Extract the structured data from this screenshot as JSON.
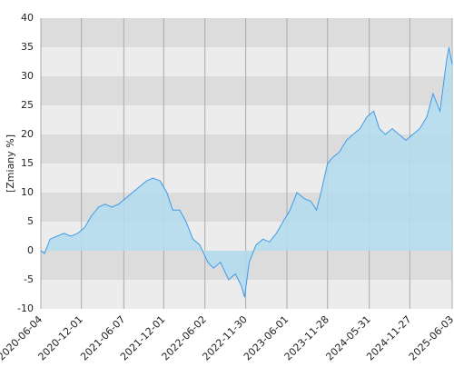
{
  "chart_data": {
    "type": "area",
    "ylabel": "[Zmiany %]",
    "xlim": [
      "2020-06-04",
      "2025-06-03"
    ],
    "xticks": [
      "2020-06-04",
      "2020-12-01",
      "2021-06-07",
      "2021-12-01",
      "2022-06-02",
      "2022-11-30",
      "2023-06-01",
      "2023-11-28",
      "2024-05-31",
      "2024-11-27",
      "2025-06-03"
    ],
    "ylim": [
      -10,
      40
    ],
    "yticks": [
      -10,
      -5,
      0,
      5,
      10,
      15,
      20,
      25,
      30,
      35,
      40
    ],
    "grid": true,
    "color": "#3d9be9",
    "fill": "#b3dcee",
    "x": [
      "2020-06-04",
      "2020-06-20",
      "2020-07-15",
      "2020-08-15",
      "2020-09-15",
      "2020-10-15",
      "2020-11-15",
      "2020-12-15",
      "2021-01-15",
      "2021-02-15",
      "2021-03-15",
      "2021-04-15",
      "2021-05-15",
      "2021-06-15",
      "2021-07-15",
      "2021-08-15",
      "2021-09-15",
      "2021-10-15",
      "2021-11-15",
      "2021-12-15",
      "2022-01-10",
      "2022-02-10",
      "2022-03-10",
      "2022-04-10",
      "2022-05-10",
      "2022-06-15",
      "2022-07-10",
      "2022-08-10",
      "2022-09-15",
      "2022-10-15",
      "2022-11-10",
      "2022-11-25",
      "2022-12-15",
      "2023-01-15",
      "2023-02-15",
      "2023-03-15",
      "2023-04-15",
      "2023-05-15",
      "2023-06-15",
      "2023-07-15",
      "2023-08-15",
      "2023-09-15",
      "2023-10-10",
      "2023-10-30",
      "2023-11-28",
      "2023-12-20",
      "2024-01-20",
      "2024-02-20",
      "2024-03-20",
      "2024-04-20",
      "2024-05-20",
      "2024-06-20",
      "2024-07-15",
      "2024-08-10",
      "2024-09-10",
      "2024-10-10",
      "2024-11-10",
      "2024-12-10",
      "2025-01-10",
      "2025-02-10",
      "2025-03-10",
      "2025-04-10",
      "2025-05-10",
      "2025-05-20",
      "2025-06-03"
    ],
    "values": [
      0,
      -0.5,
      2,
      2.5,
      3,
      2.5,
      3,
      4,
      6,
      7.5,
      8,
      7.5,
      8,
      9,
      10,
      11,
      12,
      12.5,
      12,
      10,
      7,
      7,
      5,
      2,
      1,
      -2,
      -3,
      -2,
      -5,
      -4,
      -6,
      -8,
      -2,
      1,
      2,
      1.5,
      3,
      5,
      7,
      10,
      9,
      8.5,
      7,
      10,
      15,
      16,
      17,
      19,
      20,
      21,
      23,
      24,
      21,
      20,
      21,
      20,
      19,
      20,
      21,
      23,
      27,
      24,
      33,
      35,
      32
    ]
  }
}
